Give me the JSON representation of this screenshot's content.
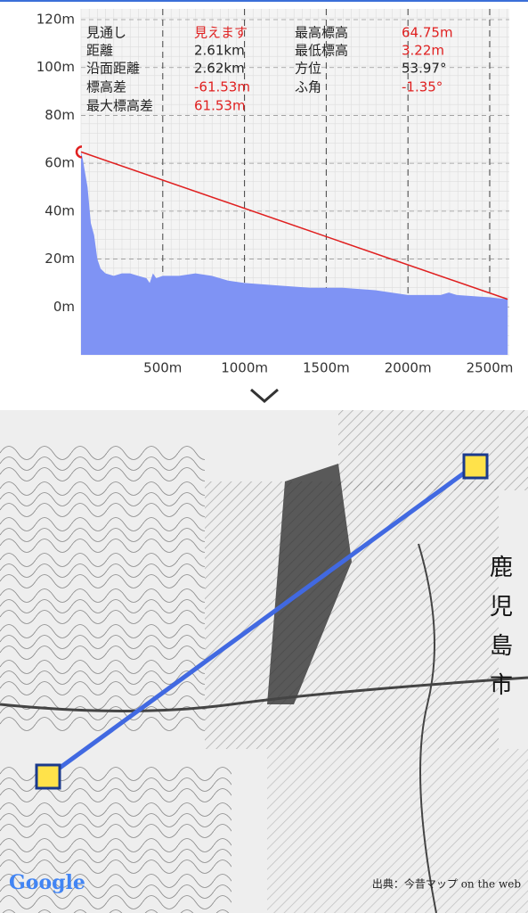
{
  "chart_data": {
    "type": "area",
    "profile": {
      "color": "#7f93f4",
      "x": [
        0,
        10,
        40,
        60,
        80,
        100,
        120,
        150,
        200,
        250,
        300,
        350,
        400,
        420,
        440,
        460,
        500,
        600,
        700,
        800,
        900,
        1000,
        1200,
        1400,
        1600,
        1800,
        2000,
        2200,
        2250,
        2300,
        2500,
        2610
      ],
      "values": [
        64.75,
        62,
        50,
        35,
        30,
        20,
        16,
        14,
        13,
        14,
        14,
        13,
        12,
        10,
        14,
        12,
        13,
        13,
        14,
        13,
        11,
        10,
        9,
        8,
        8,
        7,
        5,
        5,
        6,
        5,
        4,
        3.22
      ]
    },
    "sight_line": {
      "color": "#e02020",
      "x": [
        0,
        2610
      ],
      "values": [
        64.75,
        3.22
      ]
    },
    "xlim": [
      0,
      2620
    ],
    "ylim": [
      -20,
      120
    ],
    "xticks": [
      {
        "value": 500,
        "label": "500m"
      },
      {
        "value": 1000,
        "label": "1000m"
      },
      {
        "value": 1500,
        "label": "1500m"
      },
      {
        "value": 2000,
        "label": "2000m"
      },
      {
        "value": 2500,
        "label": "2500m"
      }
    ],
    "yticks": [
      {
        "value": 0,
        "label": "0m"
      },
      {
        "value": 20,
        "label": "20m"
      },
      {
        "value": 40,
        "label": "40m"
      },
      {
        "value": 60,
        "label": "60m"
      },
      {
        "value": 80,
        "label": "80m"
      },
      {
        "value": 100,
        "label": "100m"
      },
      {
        "value": 120,
        "label": "120m"
      }
    ],
    "grid": true
  },
  "info": {
    "left": [
      {
        "label": "見通し",
        "value": "見えます",
        "value_color": "#e02020"
      },
      {
        "label": "距離",
        "value": "2.61km",
        "value_color": "#222222"
      },
      {
        "label": "沿面距離",
        "value": "2.62km",
        "value_color": "#222222"
      },
      {
        "label": "標高差",
        "value": "-61.53m",
        "value_color": "#e02020"
      },
      {
        "label": "最大標高差",
        "value": "61.53m",
        "value_color": "#e02020"
      }
    ],
    "right": [
      {
        "label": "最高標高",
        "value": "64.75m",
        "value_color": "#e02020"
      },
      {
        "label": "最低標高",
        "value": "3.22m",
        "value_color": "#e02020"
      },
      {
        "label": "方位",
        "value": "53.97°",
        "value_color": "#222222"
      },
      {
        "label": "ふ角",
        "value": "-1.35°",
        "value_color": "#e02020"
      }
    ]
  },
  "map": {
    "city_chars": [
      "鹿",
      "児",
      "島",
      "市"
    ],
    "google": "Google",
    "source": "出典：今昔マップ on the web"
  }
}
